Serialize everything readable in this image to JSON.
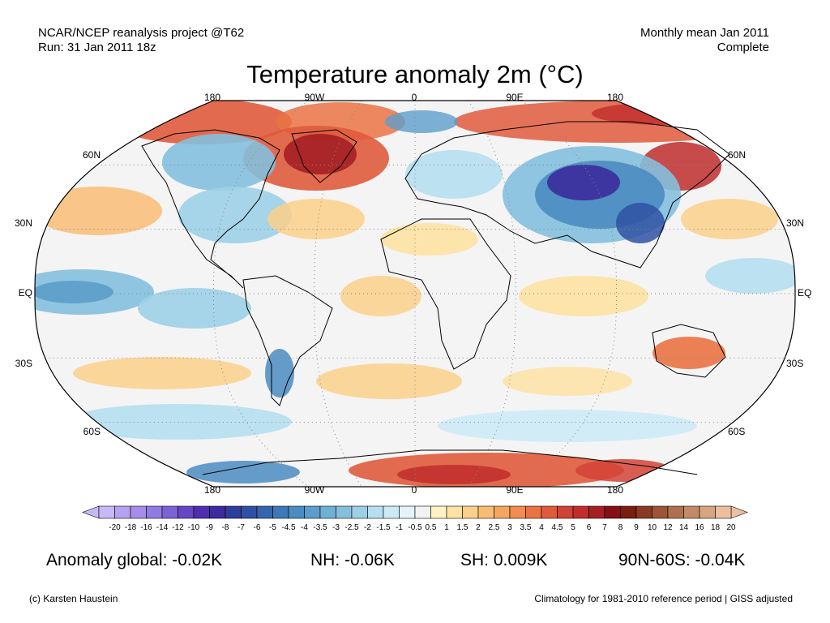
{
  "header": {
    "project": "NCAR/NCEP reanalysis project @T62",
    "run": "Run: 31 Jan 2011 18z",
    "mean": "Monthly mean Jan 2011",
    "status": "Complete"
  },
  "title": "Temperature anomaly 2m (°C)",
  "map": {
    "lon_labels": [
      "180",
      "90W",
      "0",
      "90E",
      "180"
    ],
    "lat_labels": [
      "60N",
      "30N",
      "EQ",
      "30S",
      "60S"
    ],
    "projection": "robinson",
    "ocean_color": "#f4f4f4",
    "land_outline_color": "#000000"
  },
  "colorbar": {
    "labels": [
      "-20",
      "-18",
      "-16",
      "-14",
      "-12",
      "-10",
      "-9",
      "-8",
      "-7",
      "-6",
      "-5",
      "-4.5",
      "-4",
      "-3.5",
      "-3",
      "-2.5",
      "-2",
      "-1.5",
      "-1",
      "-0.5",
      "0.5",
      "1",
      "1.5",
      "2",
      "2.5",
      "3",
      "3.5",
      "4",
      "4.5",
      "5",
      "6",
      "7",
      "8",
      "9",
      "10",
      "12",
      "14",
      "16",
      "18",
      "20"
    ],
    "colors": [
      "#c7b9f5",
      "#b6a3ef",
      "#a58de8",
      "#917be1",
      "#7b63d4",
      "#6547c4",
      "#4e2eb0",
      "#3b2b9c",
      "#2e3d98",
      "#2f51a3",
      "#3565ad",
      "#3f78b7",
      "#4b8bc1",
      "#5c9dcb",
      "#6fb0d5",
      "#84c0de",
      "#9dd0e7",
      "#b6dfef",
      "#cdebf6",
      "#e3f4fb",
      "#f2f2f2",
      "#fff2c4",
      "#fde2a3",
      "#fbd08a",
      "#f9bc74",
      "#f6a660",
      "#f18d4f",
      "#ea7344",
      "#e05b3c",
      "#d34236",
      "#c02d2d",
      "#a51f25",
      "#880d16",
      "#7a1e10",
      "#8a3a22",
      "#9c5538",
      "#b0704f",
      "#c48a68",
      "#d8a583",
      "#ebbfa0"
    ]
  },
  "stats": {
    "global": "Anomaly global: -0.02K",
    "nh": "NH: -0.06K",
    "sh": "SH: 0.009K",
    "band": "90N-60S: -0.04K"
  },
  "footer": {
    "credit": "(c) Karsten Haustein",
    "climatology": "Climatology for 1981-2010 reference period | GISS adjusted"
  }
}
